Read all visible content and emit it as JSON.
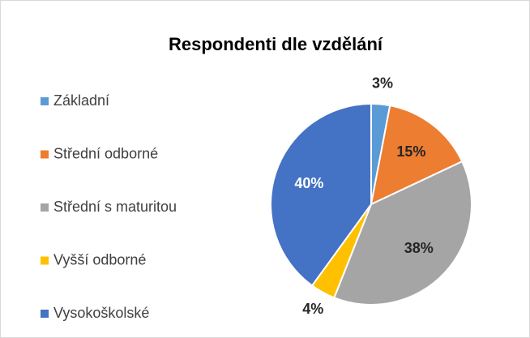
{
  "chart_data": {
    "type": "pie",
    "title": "Respondenti dle vzdělání",
    "categories": [
      "Základní",
      "Střední odborné",
      "Střední s maturitou",
      "Vyšší odborné",
      "Vysokoškolské"
    ],
    "values": [
      3,
      15,
      38,
      4,
      40
    ],
    "value_labels": [
      "3%",
      "15%",
      "38%",
      "4%",
      "40%"
    ],
    "colors": [
      "#5b9bd5",
      "#ed7d31",
      "#a5a5a5",
      "#ffc000",
      "#4472c4"
    ],
    "legend": "left"
  }
}
